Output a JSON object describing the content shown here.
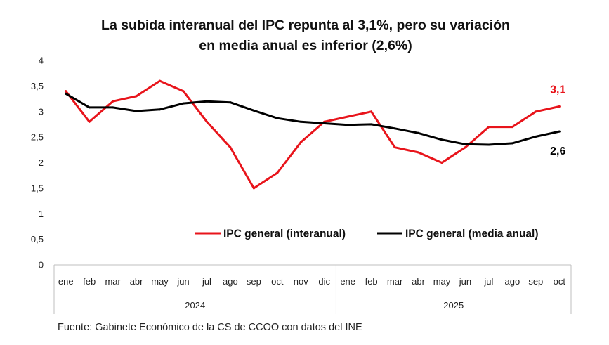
{
  "chart_data": {
    "type": "line",
    "title_line1": "La subida interanual del IPC repunta al 3,1%, pero su variación",
    "title_line2": "en media anual es inferior (2,6%)",
    "categories": [
      "ene",
      "feb",
      "mar",
      "abr",
      "may",
      "jun",
      "jul",
      "ago",
      "sep",
      "oct",
      "nov",
      "dic",
      "ene",
      "feb",
      "mar",
      "abr",
      "may",
      "jun",
      "jul",
      "ago",
      "sep",
      "oct"
    ],
    "groups": [
      {
        "label": "2024",
        "count": 12
      },
      {
        "label": "2025",
        "count": 10
      }
    ],
    "ylim": [
      0,
      4
    ],
    "yticks": [
      "0",
      "0,5",
      "1",
      "1,5",
      "2",
      "2,5",
      "3",
      "3,5",
      "4"
    ],
    "series": [
      {
        "name": "IPC general (interanual)",
        "color": "#e8141b",
        "values": [
          3.4,
          2.8,
          3.2,
          3.3,
          3.6,
          3.4,
          2.8,
          2.3,
          1.5,
          1.8,
          2.4,
          2.8,
          2.9,
          3.0,
          2.3,
          2.2,
          2.0,
          2.3,
          2.7,
          2.7,
          3.0,
          3.1
        ],
        "end_label": "3,1"
      },
      {
        "name": "IPC general (media anual)",
        "color": "#000000",
        "values": [
          3.35,
          3.08,
          3.08,
          3.01,
          3.04,
          3.16,
          3.2,
          3.18,
          3.02,
          2.87,
          2.8,
          2.77,
          2.74,
          2.75,
          2.67,
          2.58,
          2.45,
          2.36,
          2.35,
          2.38,
          2.51,
          2.61
        ],
        "end_label": "2,6"
      }
    ],
    "legend_position": "lower-right",
    "source": "Fuente: Gabinete Económico de la CS de CCOO con datos del INE"
  }
}
